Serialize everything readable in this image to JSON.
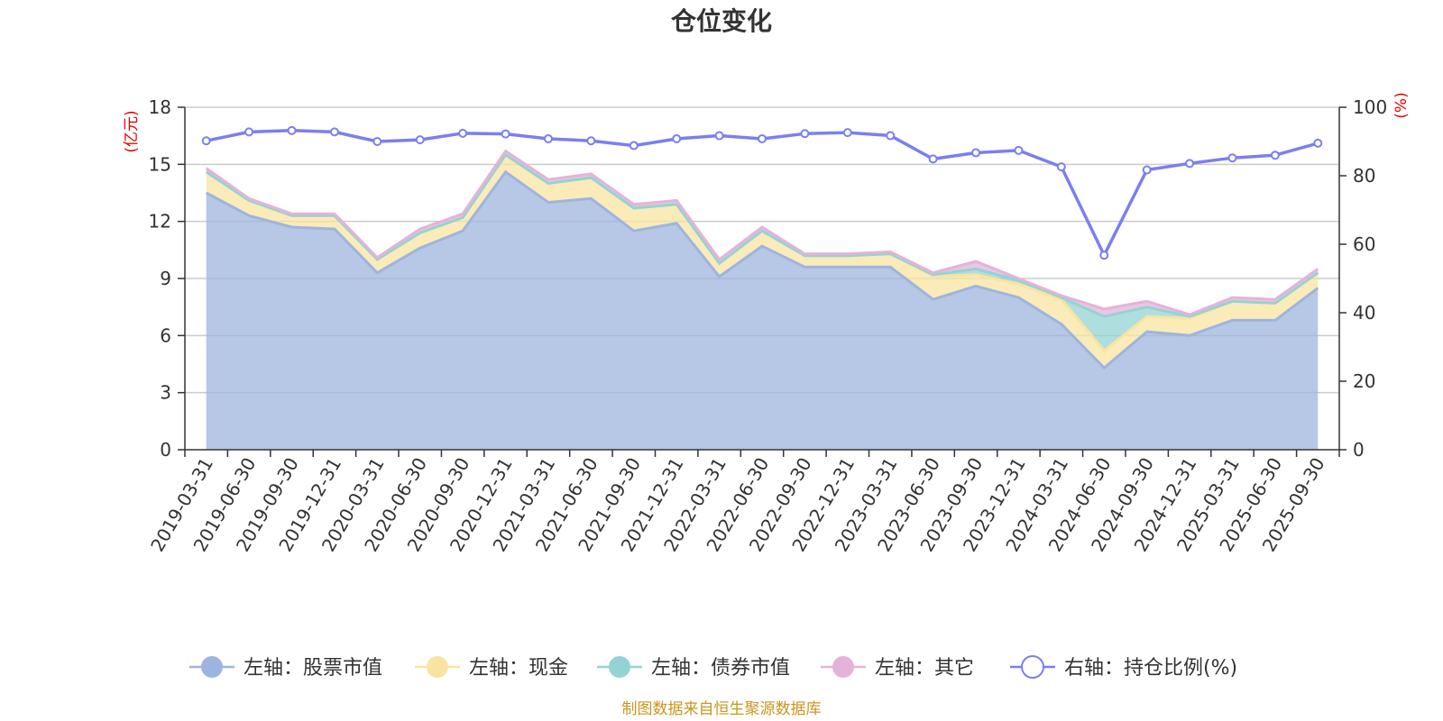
{
  "chart_data": {
    "type": "area",
    "title": "仓位变化",
    "left_axis": {
      "unit": "(亿元)",
      "ylim": [
        0,
        18
      ],
      "ticks": [
        "0",
        "3",
        "6",
        "9",
        "12",
        "15",
        "18"
      ]
    },
    "right_axis": {
      "unit": "(%)",
      "ylim": [
        0,
        100
      ],
      "ticks": [
        "0",
        "20",
        "40",
        "60",
        "80",
        "100"
      ]
    },
    "categories": [
      "2019-03-31",
      "2019-06-30",
      "2019-09-30",
      "2019-12-31",
      "2020-03-31",
      "2020-06-30",
      "2020-09-30",
      "2020-12-31",
      "2021-03-31",
      "2021-06-30",
      "2021-09-30",
      "2021-12-31",
      "2022-03-31",
      "2022-06-30",
      "2022-09-30",
      "2022-12-31",
      "2023-03-31",
      "2023-06-30",
      "2023-09-30",
      "2023-12-31",
      "2024-03-31",
      "2024-06-30",
      "2024-09-30",
      "2024-12-31",
      "2025-03-31",
      "2025-06-30",
      "2025-09-30"
    ],
    "series": [
      {
        "name": "左轴：股票市值",
        "axis": "left",
        "color": "#9db5de",
        "values": [
          13.5,
          12.3,
          11.7,
          11.6,
          9.3,
          10.6,
          11.5,
          14.6,
          13.0,
          13.2,
          11.5,
          11.9,
          9.1,
          10.7,
          9.6,
          9.6,
          9.6,
          7.9,
          8.6,
          8.0,
          6.6,
          4.3,
          6.2,
          6.0,
          6.8,
          6.8,
          8.5
        ]
      },
      {
        "name": "左轴：现金",
        "axis": "left",
        "color": "#f8e4a0",
        "values": [
          1.1,
          0.8,
          0.6,
          0.7,
          0.7,
          0.8,
          0.7,
          0.9,
          1.0,
          1.1,
          1.2,
          1.0,
          0.7,
          0.8,
          0.6,
          0.6,
          0.7,
          1.2,
          0.6,
          0.7,
          1.3,
          0.9,
          0.8,
          0.9,
          1.0,
          0.9,
          0.8
        ]
      },
      {
        "name": "左轴：债券市值",
        "axis": "left",
        "color": "#94d3d3",
        "values": [
          0,
          0,
          0,
          0,
          0,
          0,
          0,
          0,
          0,
          0,
          0,
          0,
          0,
          0,
          0,
          0,
          0,
          0.1,
          0.3,
          0.2,
          0.1,
          1.8,
          0.5,
          0.1,
          0,
          0,
          0
        ]
      },
      {
        "name": "左轴：其它",
        "axis": "left",
        "color": "#e4b3d8",
        "values": [
          0.2,
          0.1,
          0.1,
          0.1,
          0.1,
          0.2,
          0.2,
          0.2,
          0.2,
          0.2,
          0.2,
          0.2,
          0.2,
          0.2,
          0.1,
          0.1,
          0.1,
          0.1,
          0.4,
          0.1,
          0.1,
          0.4,
          0.3,
          0.1,
          0.2,
          0.2,
          0.2
        ]
      },
      {
        "name": "右轴：持仓比例(%)",
        "axis": "right",
        "color": "#7a7ff0",
        "values": [
          90.2,
          92.8,
          93.2,
          92.8,
          90.0,
          90.5,
          92.4,
          92.2,
          90.8,
          90.2,
          88.8,
          90.8,
          91.7,
          90.8,
          92.3,
          92.6,
          91.7,
          84.9,
          86.7,
          87.4,
          82.6,
          56.8,
          81.7,
          83.6,
          85.2,
          86.0,
          89.5
        ]
      }
    ],
    "grid": true,
    "legend_position": "bottom"
  },
  "footer": {
    "source": "制图数据来自恒生聚源数据库"
  }
}
